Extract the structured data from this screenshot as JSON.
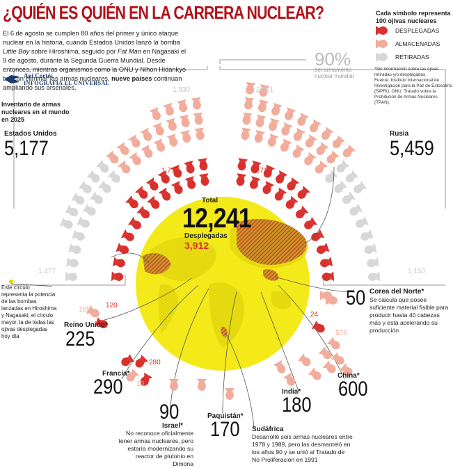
{
  "title": "¿QUIÉN ES QUIÉN EN LA CARRERA NUCLEAR?",
  "intro": {
    "part1": "El 6 de agosto se cumplen 80 años del primer y único ataque nuclear en la historia, cuando Estados Unidos lanzó la bomba ",
    "little_boy": "Little Boy",
    "part2": " sobre Hiroshima, seguido por ",
    "fat_man": "Fat Man",
    "part3": " en Nagasaki el 9 de agosto, durante la Segunda Guerra Mundial.  Desde entonces, mientras organismos como la ONU y Nihon Hidankyo buscan eliminar las armas nucleares, ",
    "bold": "nueve países",
    "part4": " continúan ampliando sus arsenales."
  },
  "credit": {
    "author": "Ani Cortés",
    "org": "INFOGRAFÍA EL UNIVERSAL"
  },
  "legend": {
    "title": "Cada símbolo representa 100 ojivas nucleares",
    "items": [
      {
        "label": "DESPLEGADAS",
        "color": "#d9322e"
      },
      {
        "label": "ALMACENADAS",
        "color": "#f2ac9b"
      },
      {
        "label": "RETIRADAS",
        "color": "#d7d7d7"
      }
    ],
    "note1": "*Sin información sobre las ojivas retiradas y/o desplegadas.",
    "note2": "Fuente: Instituto Internacional de Investigación para la Paz de Estocolmo (SIPRI), ONU, Tratado sobre la Prohibición de Armas Nucleares (TPAN)."
  },
  "pct": {
    "value": "90%",
    "label": "del armamento nuclear mundial"
  },
  "inventory_label": "Inventario de armas nucleares en el mundo en 2025",
  "center": {
    "total_label": "Total",
    "total": "12,241",
    "deployed_label": "Desplegadas",
    "deployed": "3,912"
  },
  "circle_note": "Este círculo representa la potencia de las bombas lanzadas en Hiroshima y Nagasaki; el círculo mayor, la de todas las ojivas desplegadas hoy día",
  "colors": {
    "deployed": "#d9322e",
    "stored": "#f2ac9b",
    "retired": "#d7d7d7",
    "globe": "#f4ea19",
    "title": "#b2131a"
  },
  "chart_data": {
    "type": "pictogram",
    "unit": "100 ojivas nucleares",
    "countries": [
      {
        "name": "Estados Unidos",
        "total": "5,177",
        "deployed": "1,770",
        "stored": "1,930",
        "retired": "1,477"
      },
      {
        "name": "Rusia",
        "total": "5,459",
        "deployed": "1,718",
        "stored": "2,591",
        "retired": "1,150"
      },
      {
        "name": "Corea del Norte*",
        "total": "50",
        "desc": "Se calcula que posee suficiente material fisible para producir hasta 40 cabezas más y está acelerando su producción"
      },
      {
        "name": "Reino Unido*",
        "total": "225",
        "deployed": "120",
        "stored": "105"
      },
      {
        "name": "Francia*",
        "total": "290",
        "deployed": "280",
        "stored": "10"
      },
      {
        "name": "China*",
        "total": "600",
        "deployed": "24",
        "stored": "576"
      },
      {
        "name": "India*",
        "total": "180"
      },
      {
        "name": "Israel*",
        "total": "90",
        "desc": "No reconoce oficialmente tener armas nucleares, pero estaría modernizando su reactor de plutonio en Dimona"
      },
      {
        "name": "Paquistán*",
        "total": "170"
      },
      {
        "name": "Sudáfrica",
        "desc": "Desarrolló seis armas nucleares entre 1978 y 1989, pero las desmanteló en los años 90 y se unió al Tratado de No Proliferación en 1991"
      }
    ]
  }
}
